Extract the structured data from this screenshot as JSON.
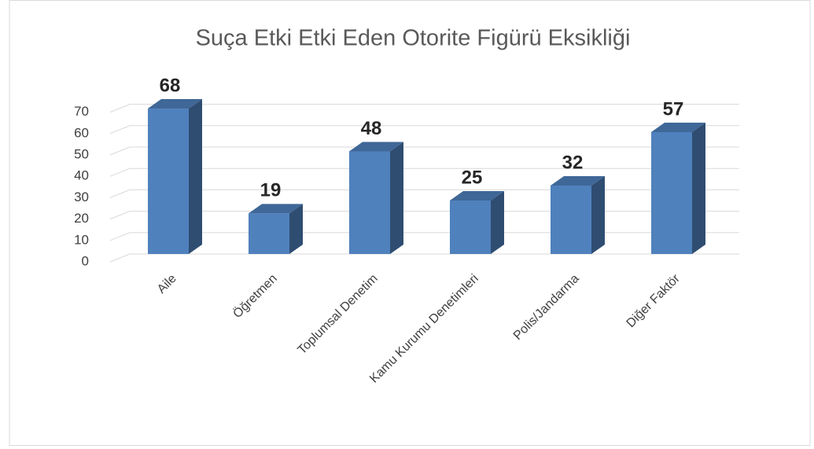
{
  "chart_data": {
    "type": "bar3d",
    "title": "Suça Etki Etki Eden Otorite Figürü Eksikliği",
    "categories": [
      "Aile",
      "Öğretmen",
      "Toplumsal Denetim",
      "Kamu Kurumu Denetimleri",
      "Polis/Jandarma",
      "Diğer Faktör"
    ],
    "values": [
      68,
      19,
      48,
      25,
      32,
      57
    ],
    "color": "#4f81bd",
    "ylim": [
      0,
      70
    ],
    "yticks": [
      0,
      10,
      20,
      30,
      40,
      50,
      60,
      70
    ],
    "grid": true
  }
}
